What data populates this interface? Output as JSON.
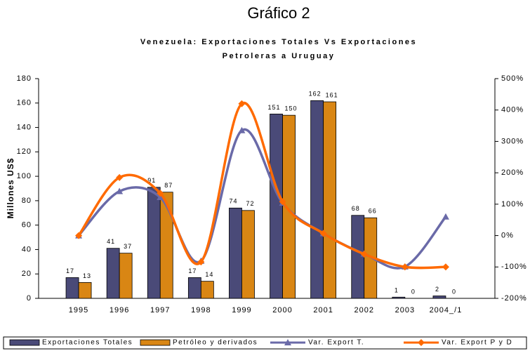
{
  "chart_data": {
    "type": "bar-line",
    "title": "Gráfico 2",
    "subtitle": [
      "Venezuela: Exportaciones Totales Vs Exportaciones",
      "Petroleras a Uruguay"
    ],
    "y_label": "Millones US$",
    "categories": [
      "1995",
      "1996",
      "1997",
      "1998",
      "1999",
      "2000",
      "2001",
      "2002",
      "2003",
      "2004_/1"
    ],
    "series": [
      {
        "name": "Exportaciones Totales",
        "type": "bar",
        "color": "#4a4a78",
        "values": [
          17,
          41,
          91,
          17,
          74,
          151,
          162,
          68,
          1,
          2
        ]
      },
      {
        "name": "Petróleo y derivados",
        "type": "bar",
        "color": "#d98614",
        "values": [
          13,
          37,
          87,
          14,
          72,
          150,
          161,
          66,
          0,
          0
        ]
      },
      {
        "name": "Var. Export T.",
        "type": "line",
        "axis": "y2",
        "marker": "triangle",
        "color": "#6a6aa8",
        "values": [
          0,
          141,
          122,
          -81,
          335,
          104,
          7,
          -58,
          -99,
          60
        ]
      },
      {
        "name": "Var. Export P y D",
        "type": "line",
        "axis": "y2",
        "marker": "diamond",
        "color": "#ff6a00",
        "values": [
          0,
          185,
          135,
          -84,
          420,
          108,
          7,
          -59,
          -100,
          -100
        ]
      }
    ],
    "ylim": [
      0,
      180
    ],
    "yticks": [
      0,
      20,
      40,
      60,
      80,
      100,
      120,
      140,
      160,
      180
    ],
    "y2lim": [
      -200,
      500
    ],
    "y2ticks": [
      {
        "value": -200,
        "label": "-200%"
      },
      {
        "value": -100,
        "label": "-100%"
      },
      {
        "value": 0,
        "label": "0%"
      },
      {
        "value": 100,
        "label": "100%"
      },
      {
        "value": 200,
        "label": "200%"
      },
      {
        "value": 300,
        "label": "300%"
      },
      {
        "value": 400,
        "label": "400%"
      },
      {
        "value": 500,
        "label": "500%"
      }
    ]
  }
}
